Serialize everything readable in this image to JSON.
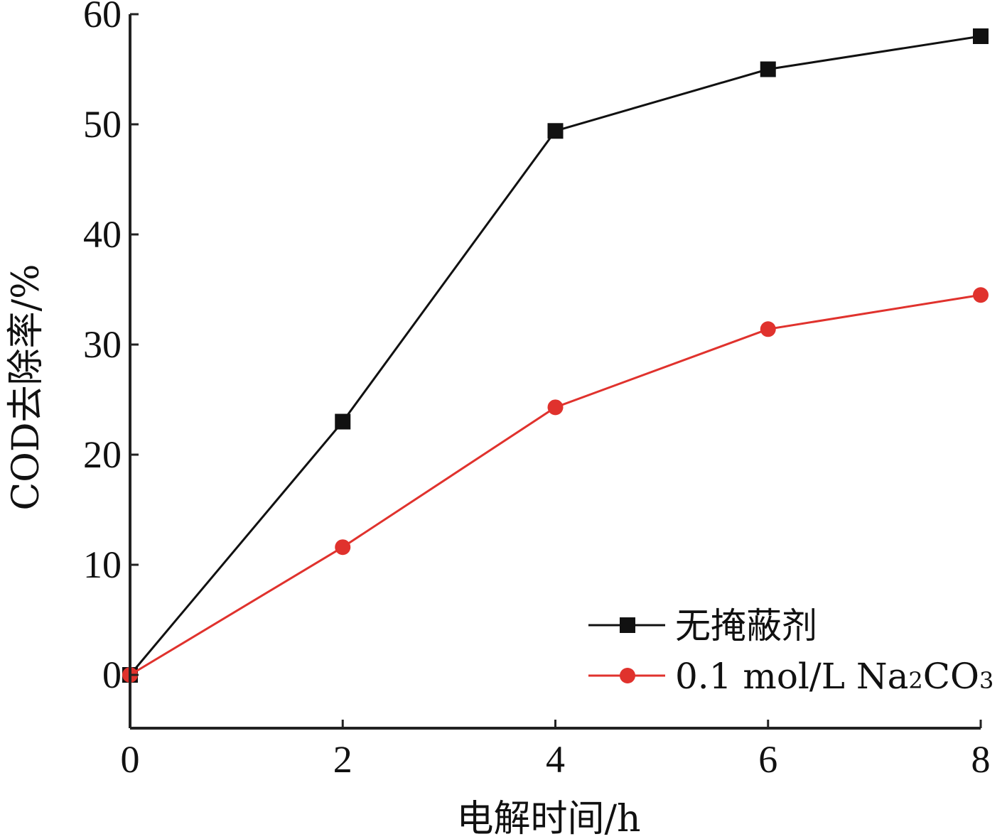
{
  "chart_data": {
    "type": "line",
    "xlabel": "电解时间/h",
    "ylabel": "COD去除率/%",
    "xlim": [
      0,
      8
    ],
    "ylim": [
      -5,
      60
    ],
    "xticks": [
      "0",
      "2",
      "4",
      "6",
      "8"
    ],
    "yticks": [
      "0",
      "10",
      "20",
      "30",
      "40",
      "50",
      "60"
    ],
    "grid": false,
    "legend_position": "bottom-right",
    "x": [
      0,
      2,
      4,
      6,
      8
    ],
    "series": [
      {
        "name": "无掩蔽剂",
        "values": [
          0,
          23,
          49.4,
          55,
          58
        ],
        "color": "#111111",
        "marker": "square"
      },
      {
        "name_parts": [
          "0.1 mol/L Na",
          "2",
          "CO",
          "3"
        ],
        "values": [
          0,
          11.6,
          24.3,
          31.4,
          34.5
        ],
        "color": "#e0322d",
        "marker": "circle"
      }
    ]
  }
}
